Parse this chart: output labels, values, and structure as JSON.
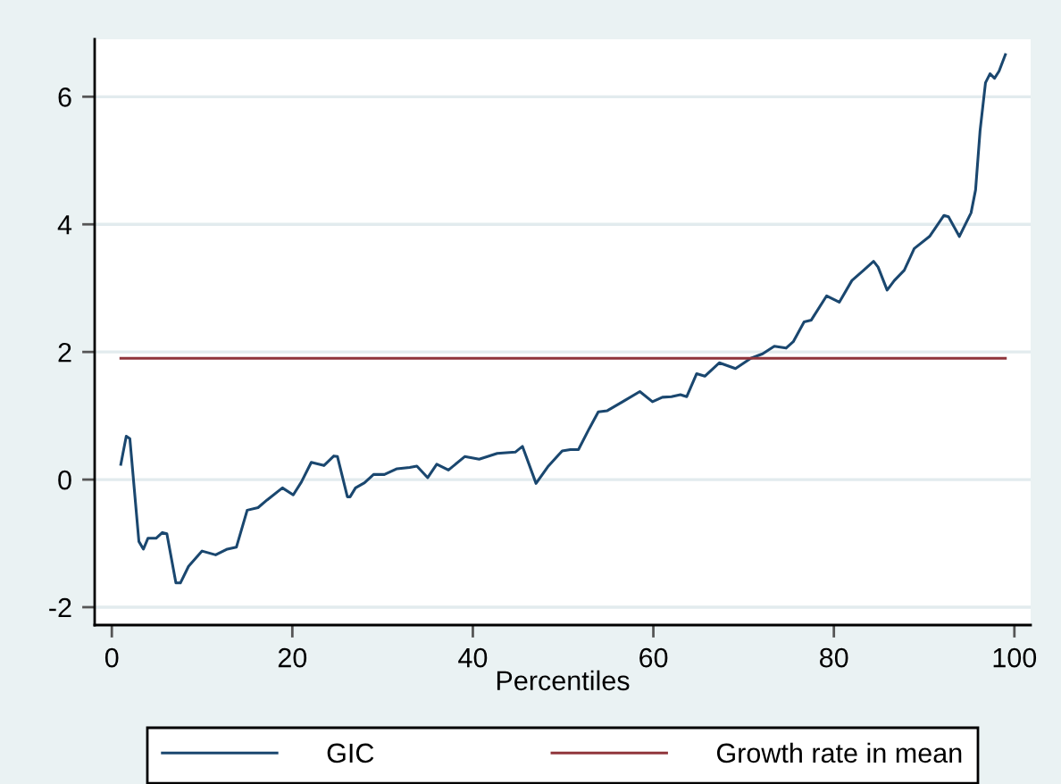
{
  "chart_data": {
    "type": "line",
    "xlabel": "Percentiles",
    "series": [
      {
        "name": "GIC",
        "color": "#1a476f",
        "x": [
          1.0,
          1.6,
          2.0,
          3.0,
          3.5,
          4.0,
          4.9,
          5.6,
          6.1,
          7.1,
          7.6,
          8.5,
          10.0,
          11.5,
          12.8,
          13.8,
          15.0,
          16.2,
          17.2,
          18.9,
          20.1,
          21.0,
          22.1,
          23.5,
          24.6,
          25.0,
          26.1,
          26.4,
          27.0,
          28.0,
          29.0,
          30.2,
          31.6,
          33.0,
          33.8,
          35.0,
          36.0,
          37.3,
          39.1,
          40.7,
          42.7,
          44.7,
          45.5,
          47.0,
          48.3,
          49.9,
          50.8,
          51.7,
          52.9,
          53.9,
          54.9,
          56.6,
          58.5,
          59.9,
          61.0,
          62.0,
          63.0,
          63.7,
          64.8,
          65.7,
          67.3,
          69.1,
          70.8,
          72.1,
          73.4,
          74.7,
          75.5,
          76.7,
          77.5,
          79.2,
          80.6,
          82.0,
          83.3,
          84.4,
          84.9,
          85.9,
          86.7,
          87.8,
          88.9,
          90.6,
          92.2,
          92.7,
          93.9,
          95.2,
          95.7,
          96.2,
          96.8,
          97.3,
          97.8,
          98.3,
          99.0
        ],
        "values": [
          0.24,
          0.68,
          0.64,
          -0.97,
          -1.09,
          -0.92,
          -0.92,
          -0.83,
          -0.85,
          -1.62,
          -1.62,
          -1.36,
          -1.12,
          -1.18,
          -1.09,
          -1.06,
          -0.48,
          -0.44,
          -0.32,
          -0.13,
          -0.24,
          -0.04,
          0.27,
          0.22,
          0.37,
          0.36,
          -0.27,
          -0.27,
          -0.13,
          -0.05,
          0.08,
          0.08,
          0.17,
          0.19,
          0.21,
          0.03,
          0.24,
          0.15,
          0.36,
          0.32,
          0.41,
          0.43,
          0.52,
          -0.06,
          0.2,
          0.45,
          0.47,
          0.47,
          0.8,
          1.06,
          1.08,
          1.22,
          1.38,
          1.22,
          1.29,
          1.3,
          1.33,
          1.3,
          1.66,
          1.62,
          1.83,
          1.74,
          1.9,
          1.97,
          2.09,
          2.06,
          2.16,
          2.47,
          2.5,
          2.88,
          2.78,
          3.12,
          3.28,
          3.42,
          3.33,
          2.97,
          3.12,
          3.28,
          3.62,
          3.81,
          4.14,
          4.12,
          3.81,
          4.18,
          4.54,
          5.47,
          6.22,
          6.36,
          6.29,
          6.4,
          6.66
        ]
      },
      {
        "name": "Growth rate in mean",
        "color": "#90353b",
        "x": [
          1,
          99
        ],
        "values": [
          1.9,
          1.9
        ]
      }
    ],
    "xlim": [
      -1.9,
      101.8
    ],
    "ylim": [
      -2.28,
      6.9
    ],
    "xticks": [
      0,
      20,
      40,
      60,
      80,
      100
    ],
    "yticks": [
      -2,
      0,
      2,
      4,
      6
    ],
    "grid": "y",
    "legend": "bottom",
    "line_style": "solid",
    "marker": "none"
  }
}
